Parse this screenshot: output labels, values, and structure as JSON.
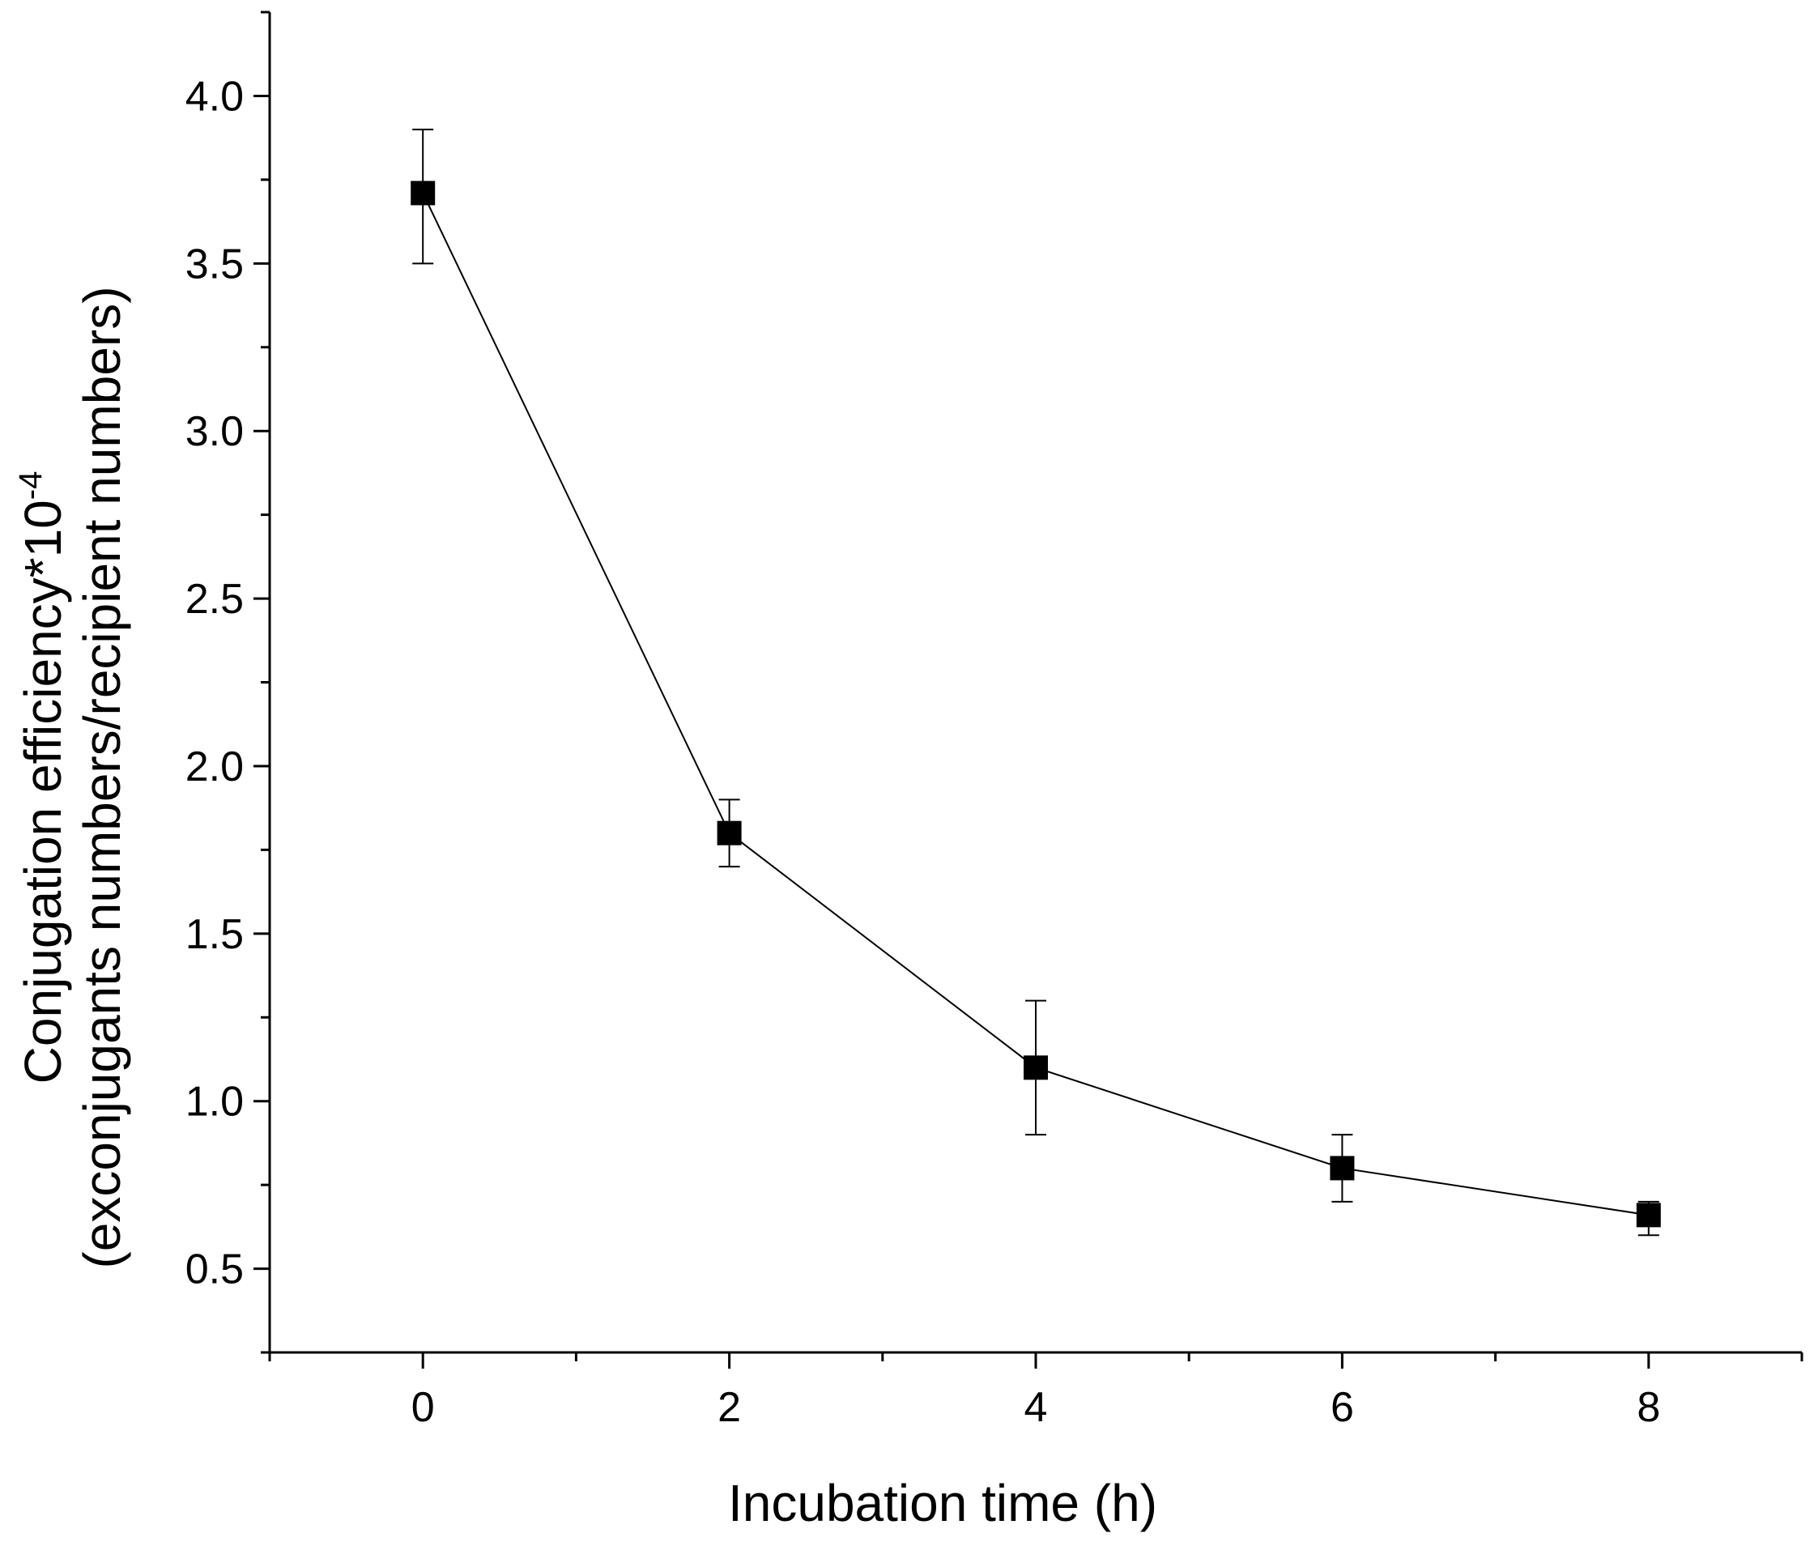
{
  "chart_data": {
    "type": "line",
    "title": "",
    "xlabel": "Incubation time   (h)",
    "ylabel_line1": "Conjugation efficiency*10",
    "ylabel_exponent": "-4",
    "ylabel_line2": "(exconjugants numbers/recipient numbers)",
    "xlim": [
      -1,
      9
    ],
    "ylim": [
      0.25,
      4.25
    ],
    "x_ticks_major": [
      0,
      2,
      4,
      6,
      8
    ],
    "x_tick_labels": [
      "0",
      "2",
      "4",
      "6",
      "8"
    ],
    "x_ticks_minor": [
      -1,
      1,
      3,
      5,
      7,
      9
    ],
    "y_ticks_major": [
      0.5,
      1.0,
      1.5,
      2.0,
      2.5,
      3.0,
      3.5,
      4.0
    ],
    "y_tick_labels": [
      "0.5",
      "1.0",
      "1.5",
      "2.0",
      "2.5",
      "3.0",
      "3.5",
      "4.0"
    ],
    "y_ticks_minor": [
      0.25,
      0.75,
      1.25,
      1.75,
      2.25,
      2.75,
      3.25,
      3.75,
      4.25
    ],
    "grid": false,
    "marker": "square",
    "series": [
      {
        "name": "Conjugation efficiency",
        "x": [
          0,
          2,
          4,
          6,
          8
        ],
        "y": [
          3.71,
          1.8,
          1.1,
          0.8,
          0.66
        ],
        "err_low": [
          3.5,
          1.7,
          0.9,
          0.7,
          0.6
        ],
        "err_high": [
          3.9,
          1.9,
          1.3,
          0.9,
          0.7
        ]
      }
    ]
  }
}
